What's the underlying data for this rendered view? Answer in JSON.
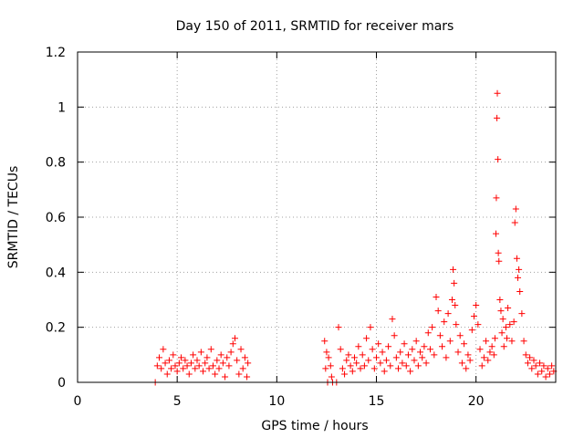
{
  "chart_data": {
    "type": "scatter",
    "title": "Day 150 of 2011, SRMTID for receiver mars",
    "xlabel": "GPS time / hours",
    "ylabel": "SRMTID / TECUs",
    "xlim": [
      0,
      24
    ],
    "ylim": [
      0,
      1.2
    ],
    "xticks": [
      0,
      5,
      10,
      15,
      20
    ],
    "yticks": [
      0,
      0.2,
      0.4,
      0.6,
      0.8,
      1,
      1.2
    ],
    "xtick_labels": [
      "0",
      "5",
      "10",
      "15",
      "20"
    ],
    "ytick_labels": [
      "0",
      "0.2",
      "0.4",
      "0.6",
      "0.8",
      "1",
      "1.2"
    ],
    "grid": true,
    "marker": "+",
    "marker_color": "#ff0000",
    "series": [
      {
        "name": "SRMTID",
        "points": [
          [
            3.9,
            0.0
          ],
          [
            4.0,
            0.06
          ],
          [
            4.1,
            0.09
          ],
          [
            4.2,
            0.05
          ],
          [
            4.3,
            0.12
          ],
          [
            4.4,
            0.07
          ],
          [
            4.5,
            0.03
          ],
          [
            4.6,
            0.08
          ],
          [
            4.7,
            0.05
          ],
          [
            4.8,
            0.1
          ],
          [
            4.9,
            0.06
          ],
          [
            5.0,
            0.04
          ],
          [
            5.1,
            0.07
          ],
          [
            5.2,
            0.09
          ],
          [
            5.3,
            0.05
          ],
          [
            5.4,
            0.08
          ],
          [
            5.5,
            0.06
          ],
          [
            5.6,
            0.03
          ],
          [
            5.7,
            0.07
          ],
          [
            5.8,
            0.1
          ],
          [
            5.9,
            0.05
          ],
          [
            6.0,
            0.08
          ],
          [
            6.1,
            0.06
          ],
          [
            6.2,
            0.11
          ],
          [
            6.3,
            0.04
          ],
          [
            6.4,
            0.07
          ],
          [
            6.5,
            0.09
          ],
          [
            6.6,
            0.05
          ],
          [
            6.7,
            0.12
          ],
          [
            6.8,
            0.06
          ],
          [
            6.9,
            0.03
          ],
          [
            7.0,
            0.08
          ],
          [
            7.1,
            0.05
          ],
          [
            7.2,
            0.1
          ],
          [
            7.3,
            0.07
          ],
          [
            7.4,
            0.02
          ],
          [
            7.5,
            0.09
          ],
          [
            7.6,
            0.06
          ],
          [
            7.7,
            0.11
          ],
          [
            7.8,
            0.14
          ],
          [
            7.9,
            0.16
          ],
          [
            8.0,
            0.08
          ],
          [
            8.1,
            0.03
          ],
          [
            8.2,
            0.12
          ],
          [
            8.3,
            0.05
          ],
          [
            8.4,
            0.09
          ],
          [
            8.5,
            0.02
          ],
          [
            8.55,
            0.07
          ],
          [
            12.4,
            0.15
          ],
          [
            12.45,
            0.05
          ],
          [
            12.5,
            0.11
          ],
          [
            12.55,
            0.0
          ],
          [
            12.6,
            0.09
          ],
          [
            12.7,
            0.06
          ],
          [
            12.75,
            0.02
          ],
          [
            12.8,
            0.0
          ],
          [
            13.0,
            0.0
          ],
          [
            13.1,
            0.2
          ],
          [
            13.2,
            0.12
          ],
          [
            13.3,
            0.05
          ],
          [
            13.4,
            0.03
          ],
          [
            13.5,
            0.08
          ],
          [
            13.6,
            0.1
          ],
          [
            13.7,
            0.06
          ],
          [
            13.8,
            0.04
          ],
          [
            13.9,
            0.09
          ],
          [
            14.0,
            0.07
          ],
          [
            14.1,
            0.13
          ],
          [
            14.2,
            0.05
          ],
          [
            14.3,
            0.1
          ],
          [
            14.4,
            0.06
          ],
          [
            14.5,
            0.16
          ],
          [
            14.6,
            0.08
          ],
          [
            14.7,
            0.2
          ],
          [
            14.8,
            0.12
          ],
          [
            14.9,
            0.05
          ],
          [
            15.0,
            0.09
          ],
          [
            15.1,
            0.14
          ],
          [
            15.2,
            0.07
          ],
          [
            15.3,
            0.11
          ],
          [
            15.4,
            0.04
          ],
          [
            15.5,
            0.08
          ],
          [
            15.6,
            0.13
          ],
          [
            15.7,
            0.06
          ],
          [
            15.8,
            0.23
          ],
          [
            15.9,
            0.17
          ],
          [
            16.0,
            0.09
          ],
          [
            16.1,
            0.05
          ],
          [
            16.2,
            0.11
          ],
          [
            16.3,
            0.07
          ],
          [
            16.4,
            0.14
          ],
          [
            16.5,
            0.06
          ],
          [
            16.6,
            0.1
          ],
          [
            16.7,
            0.04
          ],
          [
            16.8,
            0.12
          ],
          [
            16.9,
            0.08
          ],
          [
            17.0,
            0.15
          ],
          [
            17.1,
            0.06
          ],
          [
            17.2,
            0.11
          ],
          [
            17.3,
            0.09
          ],
          [
            17.4,
            0.13
          ],
          [
            17.5,
            0.07
          ],
          [
            17.6,
            0.18
          ],
          [
            17.7,
            0.12
          ],
          [
            17.8,
            0.2
          ],
          [
            17.9,
            0.1
          ],
          [
            18.0,
            0.31
          ],
          [
            18.1,
            0.26
          ],
          [
            18.2,
            0.17
          ],
          [
            18.3,
            0.13
          ],
          [
            18.4,
            0.22
          ],
          [
            18.5,
            0.09
          ],
          [
            18.6,
            0.25
          ],
          [
            18.7,
            0.15
          ],
          [
            18.8,
            0.3
          ],
          [
            18.85,
            0.41
          ],
          [
            18.9,
            0.36
          ],
          [
            18.95,
            0.28
          ],
          [
            19.0,
            0.21
          ],
          [
            19.1,
            0.11
          ],
          [
            19.2,
            0.17
          ],
          [
            19.3,
            0.07
          ],
          [
            19.4,
            0.14
          ],
          [
            19.5,
            0.05
          ],
          [
            19.6,
            0.1
          ],
          [
            19.7,
            0.08
          ],
          [
            19.8,
            0.19
          ],
          [
            19.9,
            0.24
          ],
          [
            20.0,
            0.28
          ],
          [
            20.1,
            0.21
          ],
          [
            20.2,
            0.12
          ],
          [
            20.3,
            0.06
          ],
          [
            20.4,
            0.09
          ],
          [
            20.5,
            0.15
          ],
          [
            20.6,
            0.08
          ],
          [
            20.7,
            0.11
          ],
          [
            20.8,
            0.13
          ],
          [
            20.9,
            0.1
          ],
          [
            20.95,
            0.16
          ],
          [
            21.0,
            0.54
          ],
          [
            21.02,
            0.67
          ],
          [
            21.05,
            0.96
          ],
          [
            21.07,
            1.05
          ],
          [
            21.1,
            0.81
          ],
          [
            21.12,
            0.47
          ],
          [
            21.15,
            0.44
          ],
          [
            21.2,
            0.3
          ],
          [
            21.25,
            0.26
          ],
          [
            21.3,
            0.18
          ],
          [
            21.35,
            0.23
          ],
          [
            21.4,
            0.13
          ],
          [
            21.5,
            0.2
          ],
          [
            21.55,
            0.16
          ],
          [
            21.6,
            0.27
          ],
          [
            21.7,
            0.21
          ],
          [
            21.8,
            0.15
          ],
          [
            21.9,
            0.22
          ],
          [
            21.95,
            0.58
          ],
          [
            22.0,
            0.63
          ],
          [
            22.05,
            0.45
          ],
          [
            22.1,
            0.38
          ],
          [
            22.15,
            0.41
          ],
          [
            22.2,
            0.33
          ],
          [
            22.3,
            0.25
          ],
          [
            22.4,
            0.15
          ],
          [
            22.5,
            0.1
          ],
          [
            22.6,
            0.07
          ],
          [
            22.7,
            0.09
          ],
          [
            22.8,
            0.05
          ],
          [
            22.9,
            0.08
          ],
          [
            23.0,
            0.06
          ],
          [
            23.1,
            0.03
          ],
          [
            23.2,
            0.07
          ],
          [
            23.3,
            0.04
          ],
          [
            23.4,
            0.06
          ],
          [
            23.5,
            0.02
          ],
          [
            23.6,
            0.05
          ],
          [
            23.7,
            0.03
          ],
          [
            23.8,
            0.06
          ],
          [
            23.9,
            0.04
          ]
        ]
      }
    ]
  }
}
